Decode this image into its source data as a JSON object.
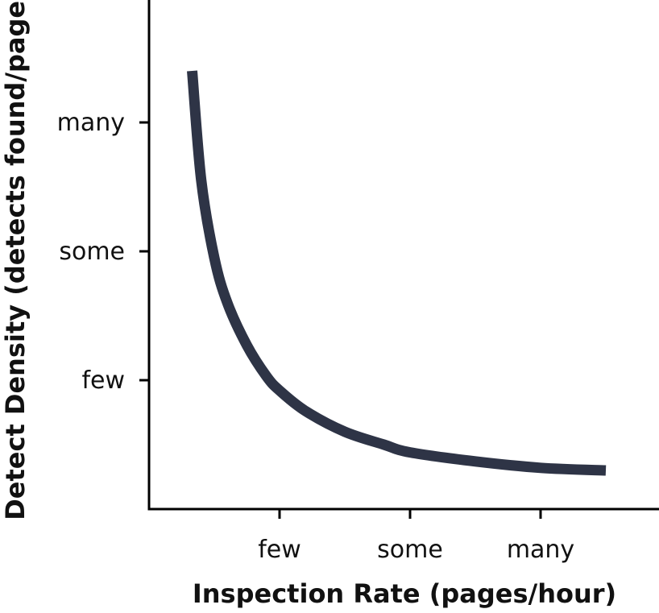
{
  "chart_data": {
    "type": "line",
    "title": "",
    "xlabel": "Inspection Rate (pages/hour)",
    "ylabel": "Detect Density (detects found/page)",
    "x_ticks": [
      {
        "label": "few",
        "value": 1
      },
      {
        "label": "some",
        "value": 2
      },
      {
        "label": "many",
        "value": 3
      }
    ],
    "y_ticks": [
      {
        "label": "few",
        "value": 1
      },
      {
        "label": "some",
        "value": 2
      },
      {
        "label": "many",
        "value": 3
      }
    ],
    "xlim": [
      0,
      4
    ],
    "ylim": [
      0,
      4
    ],
    "grid": false,
    "series": [
      {
        "color": "#2e3446",
        "x": [
          0.33,
          0.4,
          0.5,
          0.6,
          0.75,
          0.9,
          1.0,
          1.2,
          1.5,
          1.8,
          2.0,
          2.5,
          3.0,
          3.5
        ],
        "y": [
          3.4,
          2.55,
          1.95,
          1.6,
          1.27,
          1.03,
          0.92,
          0.76,
          0.6,
          0.5,
          0.44,
          0.37,
          0.32,
          0.3
        ]
      }
    ]
  }
}
